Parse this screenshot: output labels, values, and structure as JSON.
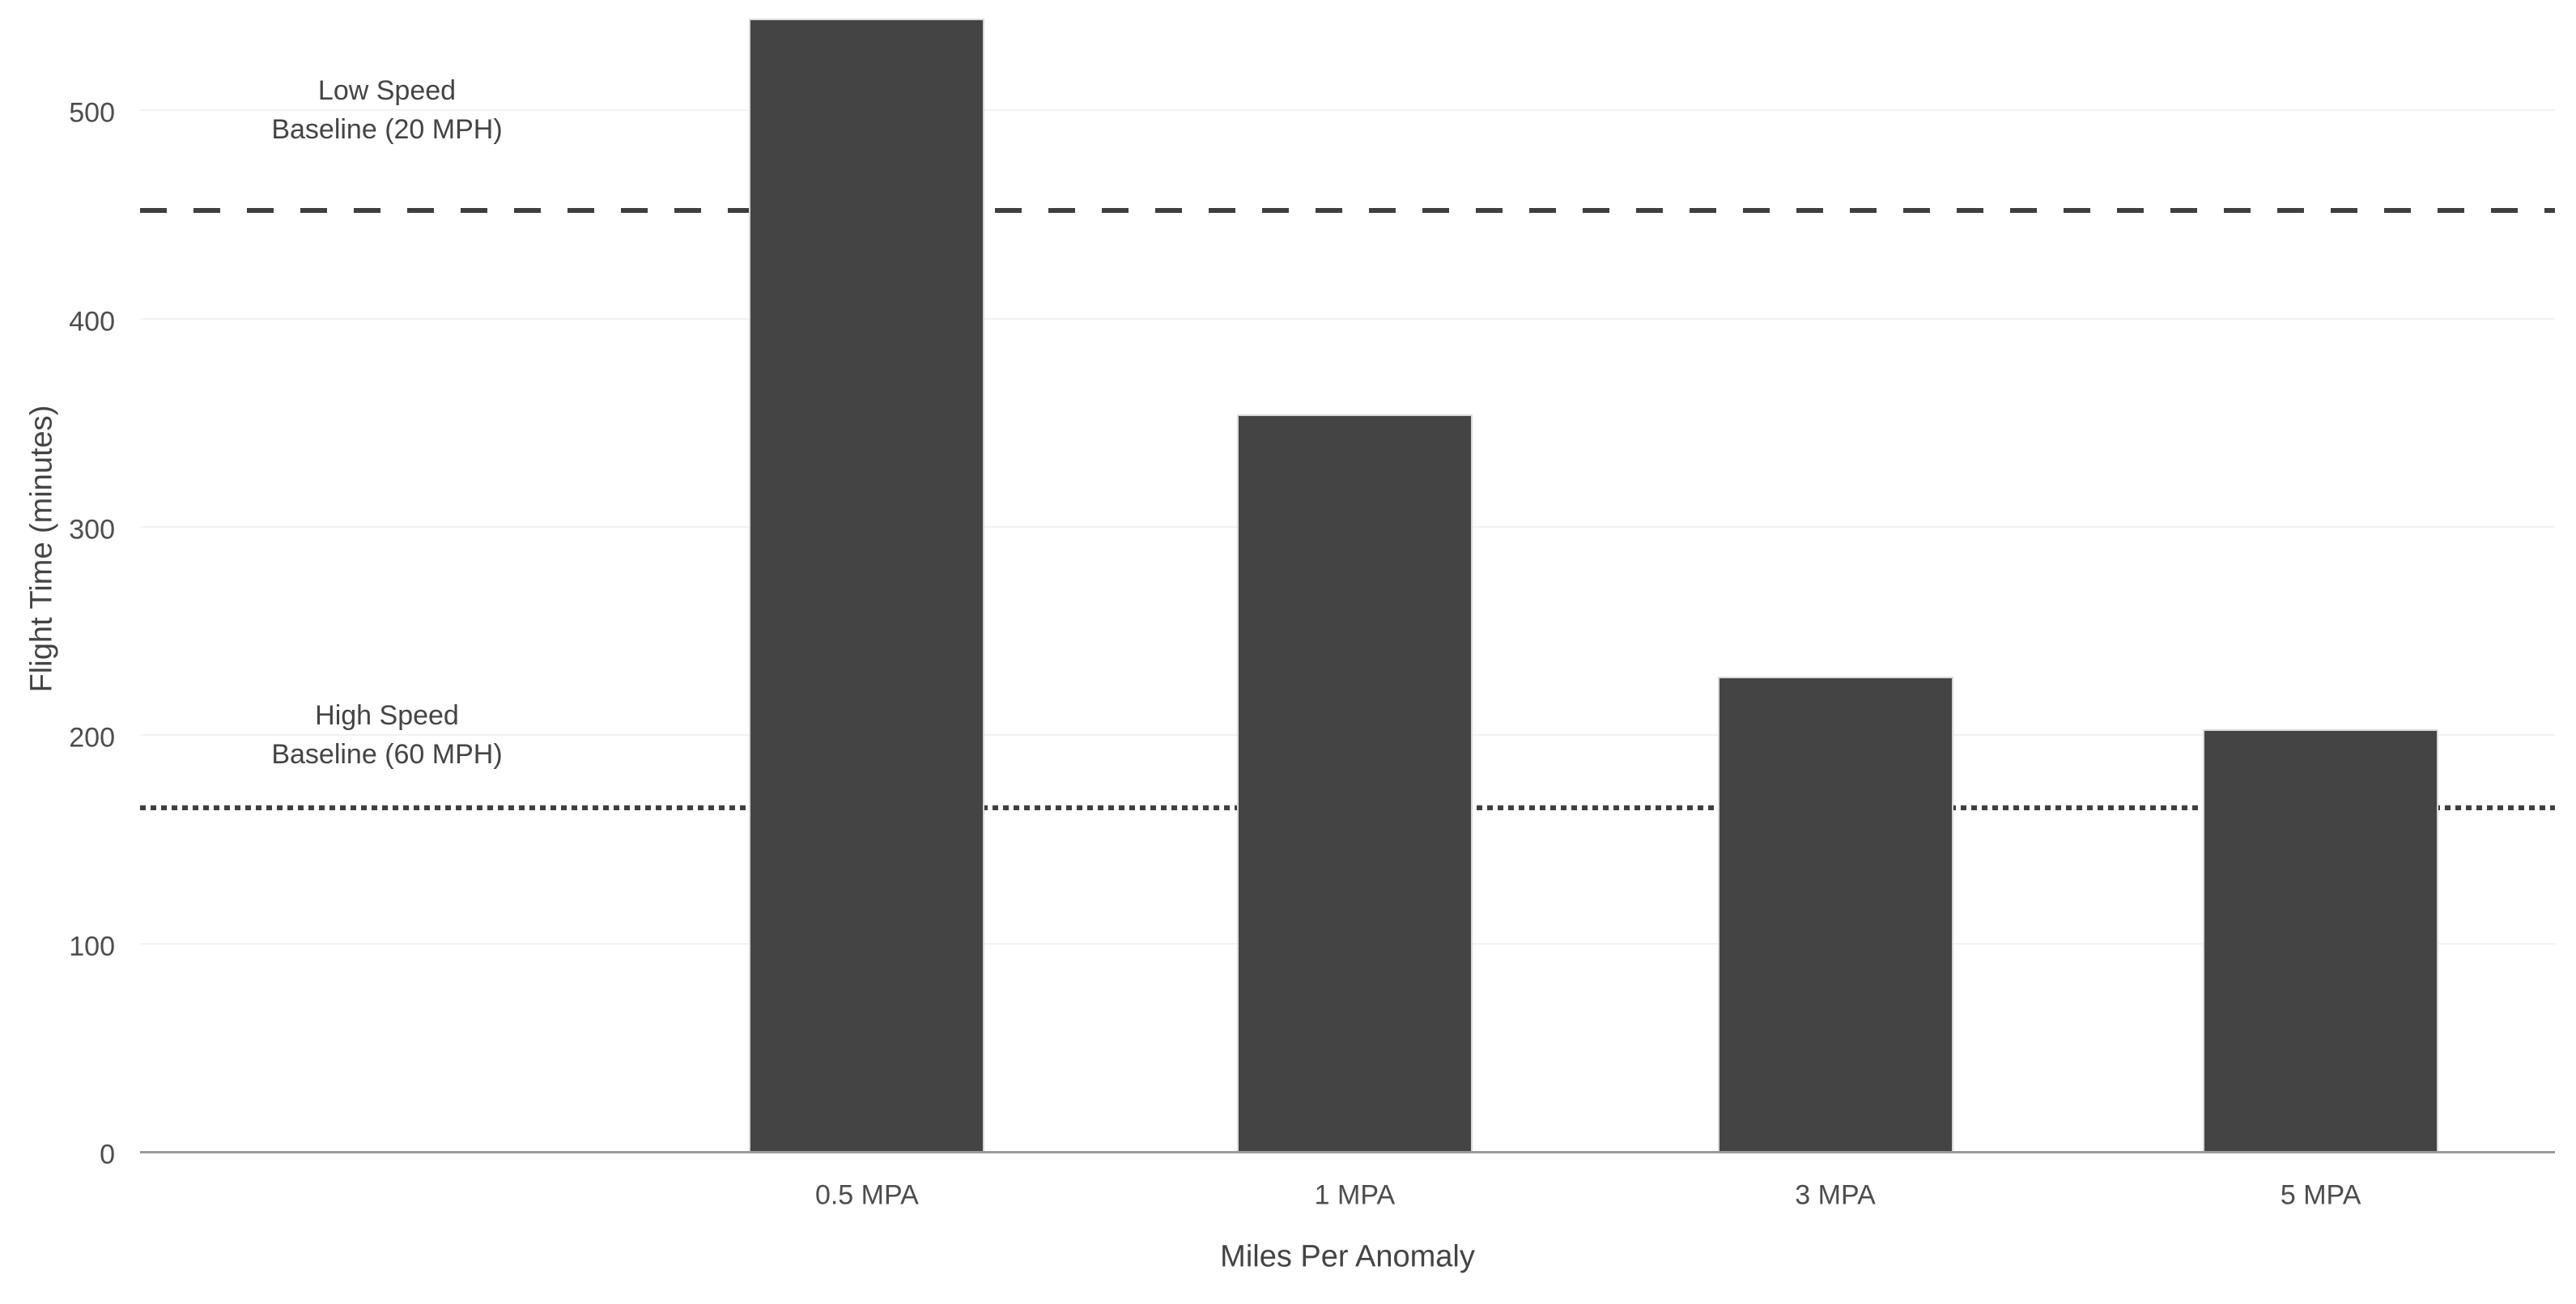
{
  "chart_data": {
    "type": "bar",
    "title": "",
    "xlabel": "Miles Per Anomaly",
    "ylabel": "Flight Time (minutes)",
    "categories": [
      "0.5 MPA",
      "1 MPA",
      "3 MPA",
      "5 MPA"
    ],
    "values": [
      544,
      354,
      228,
      203
    ],
    "yticks": [
      0,
      100,
      200,
      300,
      400,
      500
    ],
    "ylim": [
      0,
      553
    ],
    "grid": "horizontal",
    "legend_position": "none",
    "reference_lines": [
      {
        "name": "low-speed-baseline",
        "style": "dashed",
        "value": 452,
        "label_lines": [
          "Low Speed",
          "Baseline (20 MPH)"
        ]
      },
      {
        "name": "high-speed-baseline",
        "style": "dotted",
        "value": 165,
        "label_lines": [
          "High Speed",
          "Baseline (60 MPH)"
        ]
      }
    ],
    "colors": {
      "bar_fill": "#444444",
      "bar_edge": "#d9d9d9",
      "reference_line": "#3f3f3f",
      "grid": "#f2f2f2",
      "axis_line": "#9a9a9a",
      "tick_text": "#4d4d4d",
      "title_text": "#444444",
      "background": "#ffffff"
    }
  }
}
